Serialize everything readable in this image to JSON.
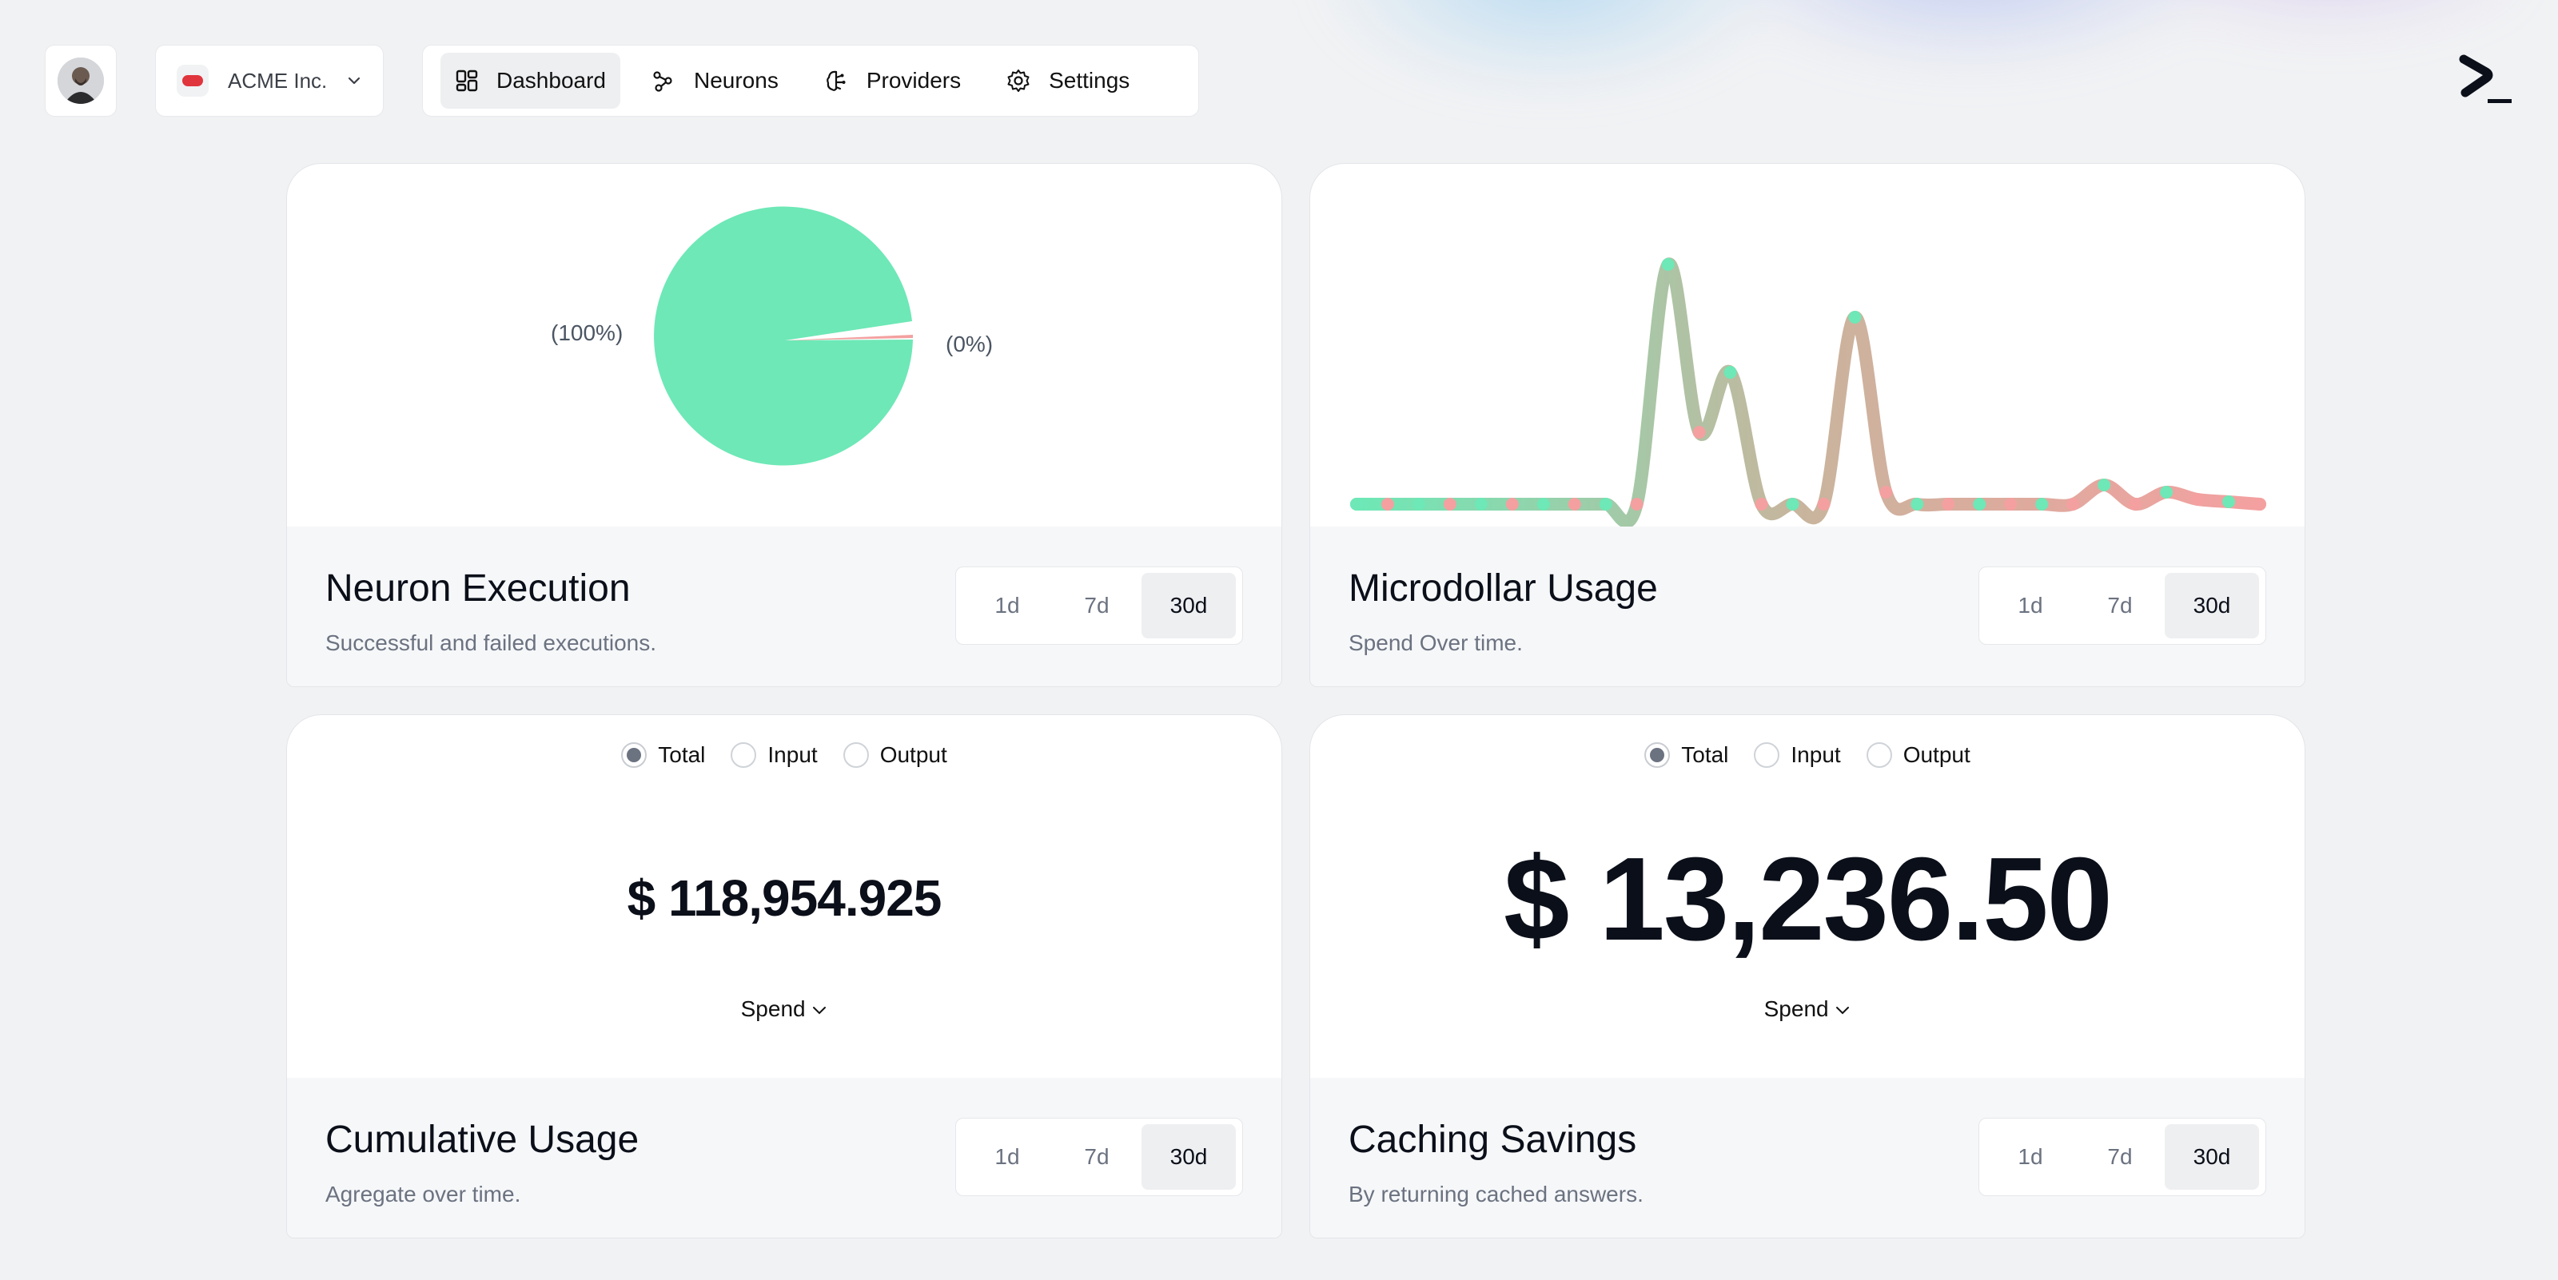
{
  "header": {
    "org_name": "ACME Inc.",
    "nav": [
      {
        "label": "Dashboard",
        "icon": "grid-icon",
        "active": true
      },
      {
        "label": "Neurons",
        "icon": "nodes-icon",
        "active": false
      },
      {
        "label": "Providers",
        "icon": "brain-icon",
        "active": false
      },
      {
        "label": "Settings",
        "icon": "gear-icon",
        "active": false
      }
    ]
  },
  "ranges": [
    "1d",
    "7d",
    "30d"
  ],
  "cards": {
    "neuron_execution": {
      "title": "Neuron Execution",
      "subtitle": "Successful and failed executions.",
      "selected_range": "30d",
      "pie_left_label": "(100%)",
      "pie_right_label": "(0%)"
    },
    "microdollar_usage": {
      "title": "Microdollar Usage",
      "subtitle": "Spend Over time.",
      "selected_range": "30d"
    },
    "cumulative_usage": {
      "title": "Cumulative Usage",
      "subtitle": "Agregate over time.",
      "selected_range": "30d",
      "radio_options": [
        "Total",
        "Input",
        "Output"
      ],
      "selected_option": "Total",
      "value": "$ 118,954.925",
      "metric_label": "Spend"
    },
    "caching_savings": {
      "title": "Caching Savings",
      "subtitle": "By returning cached answers.",
      "selected_range": "30d",
      "radio_options": [
        "Total",
        "Input",
        "Output"
      ],
      "selected_option": "Total",
      "value": "$ 13,236.50",
      "metric_label": "Spend"
    }
  },
  "chart_data": [
    {
      "type": "pie",
      "categories": [
        "",
        ""
      ],
      "values": [
        100,
        0
      ],
      "labels": [
        "(100%)",
        "(0%)"
      ],
      "colors": [
        "#6de8b6",
        "#f4a0a0"
      ]
    },
    {
      "type": "line",
      "x": [
        1,
        2,
        3,
        4,
        5,
        6,
        7,
        8,
        9,
        10,
        11,
        12,
        13,
        14,
        15,
        16,
        17,
        18,
        19,
        20,
        21,
        22,
        23,
        24,
        25,
        26,
        27,
        28,
        29,
        30
      ],
      "values": [
        0,
        0,
        0,
        0,
        0,
        0,
        0,
        0,
        0,
        0,
        100,
        30,
        55,
        0,
        0,
        0,
        78,
        5,
        0,
        0,
        0,
        0,
        0,
        0,
        8,
        0,
        5,
        2,
        1,
        0
      ],
      "ylim": [
        0,
        100
      ],
      "colors": [
        "#6de8b6",
        "#f4a0a0"
      ]
    }
  ]
}
